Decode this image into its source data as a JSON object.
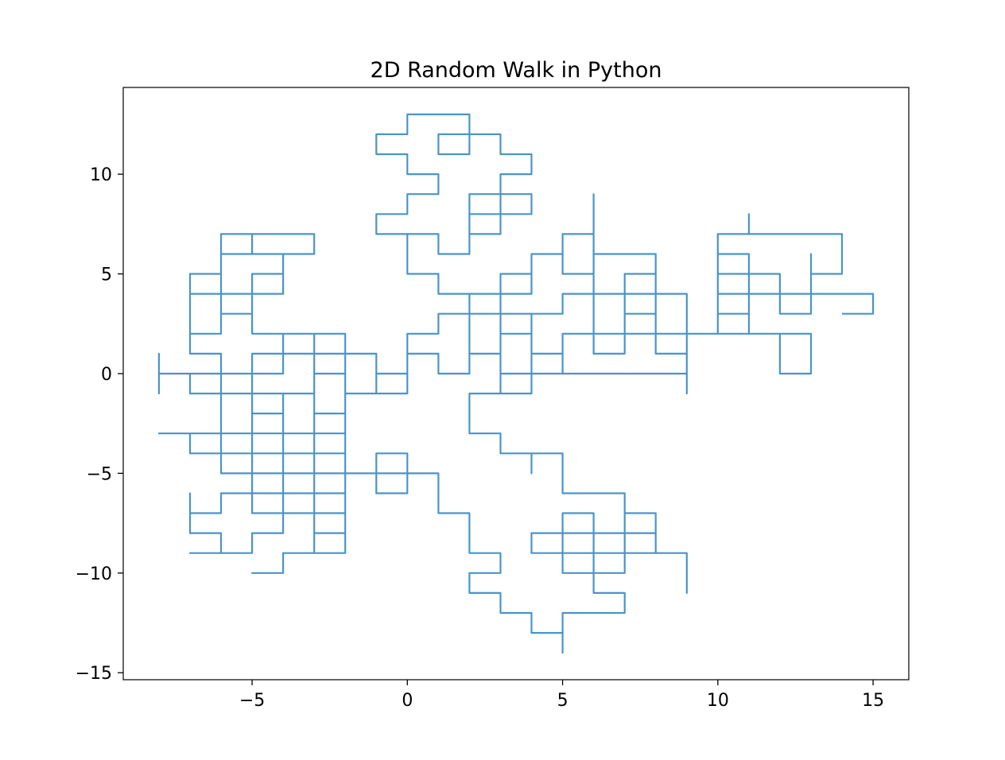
{
  "figure": {
    "background": "#ffffff"
  },
  "chart_data": {
    "type": "line",
    "title": "2D Random Walk in Python",
    "xlabel": "",
    "ylabel": "",
    "grid": false,
    "legend": null,
    "line_color": "#4a94c8",
    "line_width": 2.2,
    "xlim": [
      -9.15,
      16.15
    ],
    "ylim": [
      -15.35,
      14.35
    ],
    "xticks": [
      -5,
      0,
      5,
      10,
      15
    ],
    "xtick_labels": [
      "−5",
      "0",
      "5",
      "10",
      "15"
    ],
    "yticks": [
      -15,
      -10,
      -5,
      0,
      5,
      10
    ],
    "ytick_labels": [
      "−15",
      "−10",
      "−5",
      "0",
      "5",
      "10"
    ],
    "walk": {
      "start": [
        0,
        0
      ],
      "moves": [
        "UURURULULUULURURULULURURR",
        "DLDRURDRDLDLDRURDLDLU",
        "DDLULDDRDRRURURURUUDDDDLULDDLDRRURU",
        "URRDLDRUDDLULDDRURDRUULL",
        "LLDLDLULDDRURDRURDRURDRUDD",
        "DULLLLULDLULDLULDLDLULULURD",
        "RULLLULULURUURDLDDRURURULLDRDDLDLDLUUDDD",
        "RDLLUDDURDRURURDLDRRURURDRDL",
        "LDLULDLULDDRURDLDLULLRDRDRURDLDR",
        "URULURDRULURDDDLDLDLULDLUDDRDLRRURURDRULURD",
        "DLDLDLRURRUUUURURDLDRU",
        "RDDRDDRDLDRDRDRDUURRULURULDLULURDRULURDRURDDRDDUULLURULULL",
        "UULDULULUURRUDLURRRR",
        "RRUURURDRDDRUULLLUUUUURUDRRRD",
        "DLUDDLULULDRDLDRURDRUR",
        "RDL"
      ]
    }
  }
}
